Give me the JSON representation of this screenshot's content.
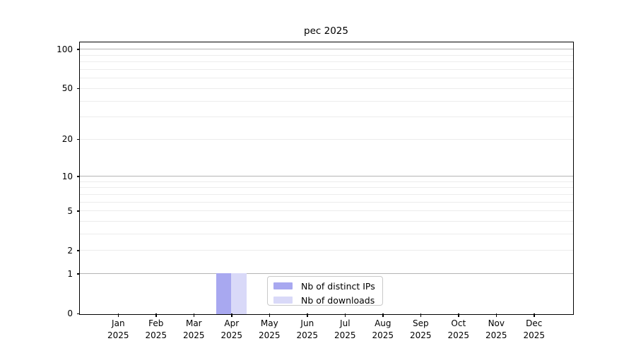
{
  "chart_data": {
    "type": "bar",
    "title": "pec 2025",
    "categories": [
      "Jan",
      "Feb",
      "Mar",
      "Apr",
      "May",
      "Jun",
      "Jul",
      "Aug",
      "Sep",
      "Oct",
      "Nov",
      "Dec"
    ],
    "category_year": "2025",
    "series": [
      {
        "name": "Nb of distinct IPs",
        "color": "#a8a8f0",
        "values": [
          0,
          0,
          0,
          1,
          0,
          0,
          0,
          0,
          0,
          0,
          0,
          0
        ]
      },
      {
        "name": "Nb of downloads",
        "color": "#d9d9f8",
        "values": [
          0,
          0,
          0,
          1,
          0,
          0,
          0,
          0,
          0,
          0,
          0,
          0
        ]
      }
    ],
    "yscale": "log1p",
    "ylim": [
      0,
      113
    ],
    "yticks": [
      0,
      1,
      2,
      5,
      10,
      20,
      50,
      100
    ],
    "grid": {
      "major_values": [
        1,
        10,
        100
      ],
      "minor_values": [
        2,
        3,
        4,
        5,
        6,
        7,
        8,
        9,
        20,
        30,
        40,
        50,
        60,
        70,
        80,
        90
      ],
      "major_color": "#b4b4b4",
      "minor_color": "#ececec"
    },
    "legend_position": "lower center",
    "axis_color": "#000000",
    "background_color": "#ffffff"
  }
}
